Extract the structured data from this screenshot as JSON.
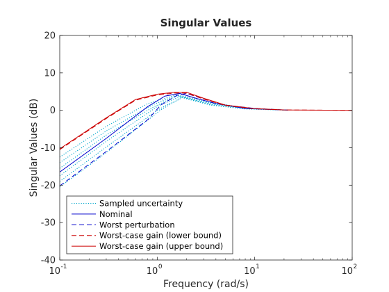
{
  "chart_data": {
    "type": "line",
    "title": "Singular Values",
    "xlabel": "Frequency (rad/s)",
    "ylabel": "Singular Values (dB)",
    "xscale": "log",
    "xlim": [
      0.1,
      100
    ],
    "ylim": [
      -40,
      20
    ],
    "x_ticks": [
      {
        "base": "10",
        "exp": "-1",
        "value": 0.1
      },
      {
        "base": "10",
        "exp": "0",
        "value": 1
      },
      {
        "base": "10",
        "exp": "1",
        "value": 10
      },
      {
        "base": "10",
        "exp": "2",
        "value": 100
      }
    ],
    "y_ticks": [
      {
        "label": "20",
        "value": 20
      },
      {
        "label": "10",
        "value": 10
      },
      {
        "label": "0",
        "value": 0
      },
      {
        "label": "-10",
        "value": -10
      },
      {
        "label": "-20",
        "value": -20
      },
      {
        "label": "-30",
        "value": -30
      },
      {
        "label": "-40",
        "value": -40
      }
    ],
    "grid": false,
    "legend_position": "bottom-left",
    "legend": [
      {
        "label": "Sampled uncertainty",
        "color": "#00a6cc",
        "style": "dotted"
      },
      {
        "label": "Nominal",
        "color": "#0000cc",
        "style": "solid"
      },
      {
        "label": "Worst perturbation",
        "color": "#0000cc",
        "style": "dashed"
      },
      {
        "label": "Worst-case gain (lower bound)",
        "color": "#cc0000",
        "style": "dashed"
      },
      {
        "label": "Worst-case gain (upper bound)",
        "color": "#cc0000",
        "style": "solid"
      }
    ],
    "series": [
      {
        "color": "#00a6cc",
        "style": "dotted",
        "x": [
          0.1,
          0.3,
          0.8,
          1.6,
          3.5,
          8,
          22
        ],
        "y": [
          -12.5,
          -4.3,
          1.8,
          4.2,
          2.2,
          0.6,
          0.05
        ]
      },
      {
        "color": "#00a6cc",
        "style": "dotted",
        "x": [
          0.1,
          0.3,
          0.9,
          1.6,
          3.5,
          8,
          22
        ],
        "y": [
          -14,
          -5.5,
          1.5,
          4.0,
          2.0,
          0.55,
          0.05
        ]
      },
      {
        "color": "#00a6cc",
        "style": "dotted",
        "x": [
          0.1,
          0.3,
          0.9,
          1.6,
          3.5,
          8,
          22
        ],
        "y": [
          -15.5,
          -6.6,
          0.8,
          3.9,
          1.8,
          0.5,
          0.05
        ]
      },
      {
        "color": "#00a6cc",
        "style": "dotted",
        "x": [
          0.1,
          0.3,
          1.0,
          1.7,
          3.5,
          8,
          22
        ],
        "y": [
          -17.5,
          -8.3,
          1.0,
          3.7,
          1.6,
          0.45,
          0.05
        ]
      },
      {
        "color": "#00a6cc",
        "style": "dotted",
        "x": [
          0.1,
          0.3,
          1.0,
          1.8,
          3.5,
          8,
          22
        ],
        "y": [
          -19,
          -9.8,
          0.0,
          3.6,
          1.5,
          0.4,
          0.05
        ]
      },
      {
        "color": "#00a6cc",
        "style": "dotted",
        "x": [
          0.1,
          0.3,
          1.1,
          1.8,
          3.5,
          8,
          22
        ],
        "y": [
          -20.5,
          -11.3,
          0.2,
          3.4,
          1.4,
          0.35,
          0.05
        ]
      },
      {
        "color": "#0000cc",
        "style": "solid",
        "x": [
          0.1,
          0.3,
          0.8,
          1.2,
          1.7,
          2.5,
          4,
          8,
          22
        ],
        "y": [
          -16.5,
          -7.5,
          1.0,
          3.8,
          4.5,
          3.2,
          1.8,
          0.5,
          0.05
        ]
      },
      {
        "color": "#0000cc",
        "style": "dashed",
        "x": [
          0.1,
          0.3,
          0.8,
          1.1,
          1.6,
          2.0,
          3.0,
          5,
          10,
          22
        ],
        "y": [
          -20.2,
          -11.0,
          -2.5,
          1.5,
          4.0,
          4.5,
          3.0,
          1.4,
          0.5,
          0.05
        ]
      },
      {
        "color": "#cc0000",
        "style": "dashed",
        "x": [
          0.1,
          0.3,
          0.6,
          1.0,
          1.5,
          2.0,
          3.0,
          5,
          10,
          20,
          100
        ],
        "y": [
          -10.5,
          -2.2,
          2.7,
          4.1,
          4.6,
          4.6,
          3.0,
          1.3,
          0.4,
          0.1,
          0.0
        ]
      },
      {
        "color": "#cc0000",
        "style": "solid",
        "x": [
          0.1,
          0.3,
          0.6,
          1.0,
          1.5,
          2.0,
          3.0,
          5,
          10,
          20,
          100
        ],
        "y": [
          -10.3,
          -2.0,
          2.9,
          4.3,
          4.8,
          4.8,
          3.2,
          1.4,
          0.45,
          0.1,
          0.0
        ]
      }
    ]
  }
}
